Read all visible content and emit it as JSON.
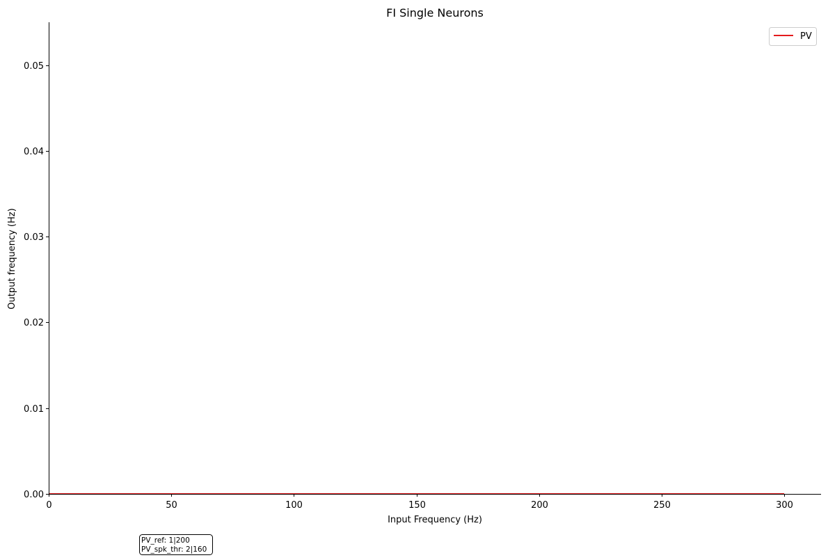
{
  "chart_data": {
    "type": "line",
    "title": "FI Single Neurons",
    "xlabel": "Input Frequency (Hz)",
    "ylabel": "Output frequency (Hz)",
    "xlim": [
      0,
      315
    ],
    "ylim": [
      0,
      0.055
    ],
    "xticks": [
      0,
      50,
      100,
      150,
      200,
      250,
      300
    ],
    "xtick_labels": [
      "0",
      "50",
      "100",
      "150",
      "200",
      "250",
      "300"
    ],
    "yticks": [
      0,
      0.01,
      0.02,
      0.03,
      0.04,
      0.05
    ],
    "ytick_labels": [
      "0.00",
      "0.01",
      "0.02",
      "0.03",
      "0.04",
      "0.05"
    ],
    "grid": false,
    "legend_position": "top-right",
    "series": [
      {
        "name": "PV",
        "color": "#e41a1c",
        "x": [
          0,
          300
        ],
        "y": [
          0,
          0
        ]
      }
    ],
    "annotation": {
      "lines": [
        "PV_ref: 1|200",
        "PV_spk_thr: 2|160"
      ]
    }
  }
}
